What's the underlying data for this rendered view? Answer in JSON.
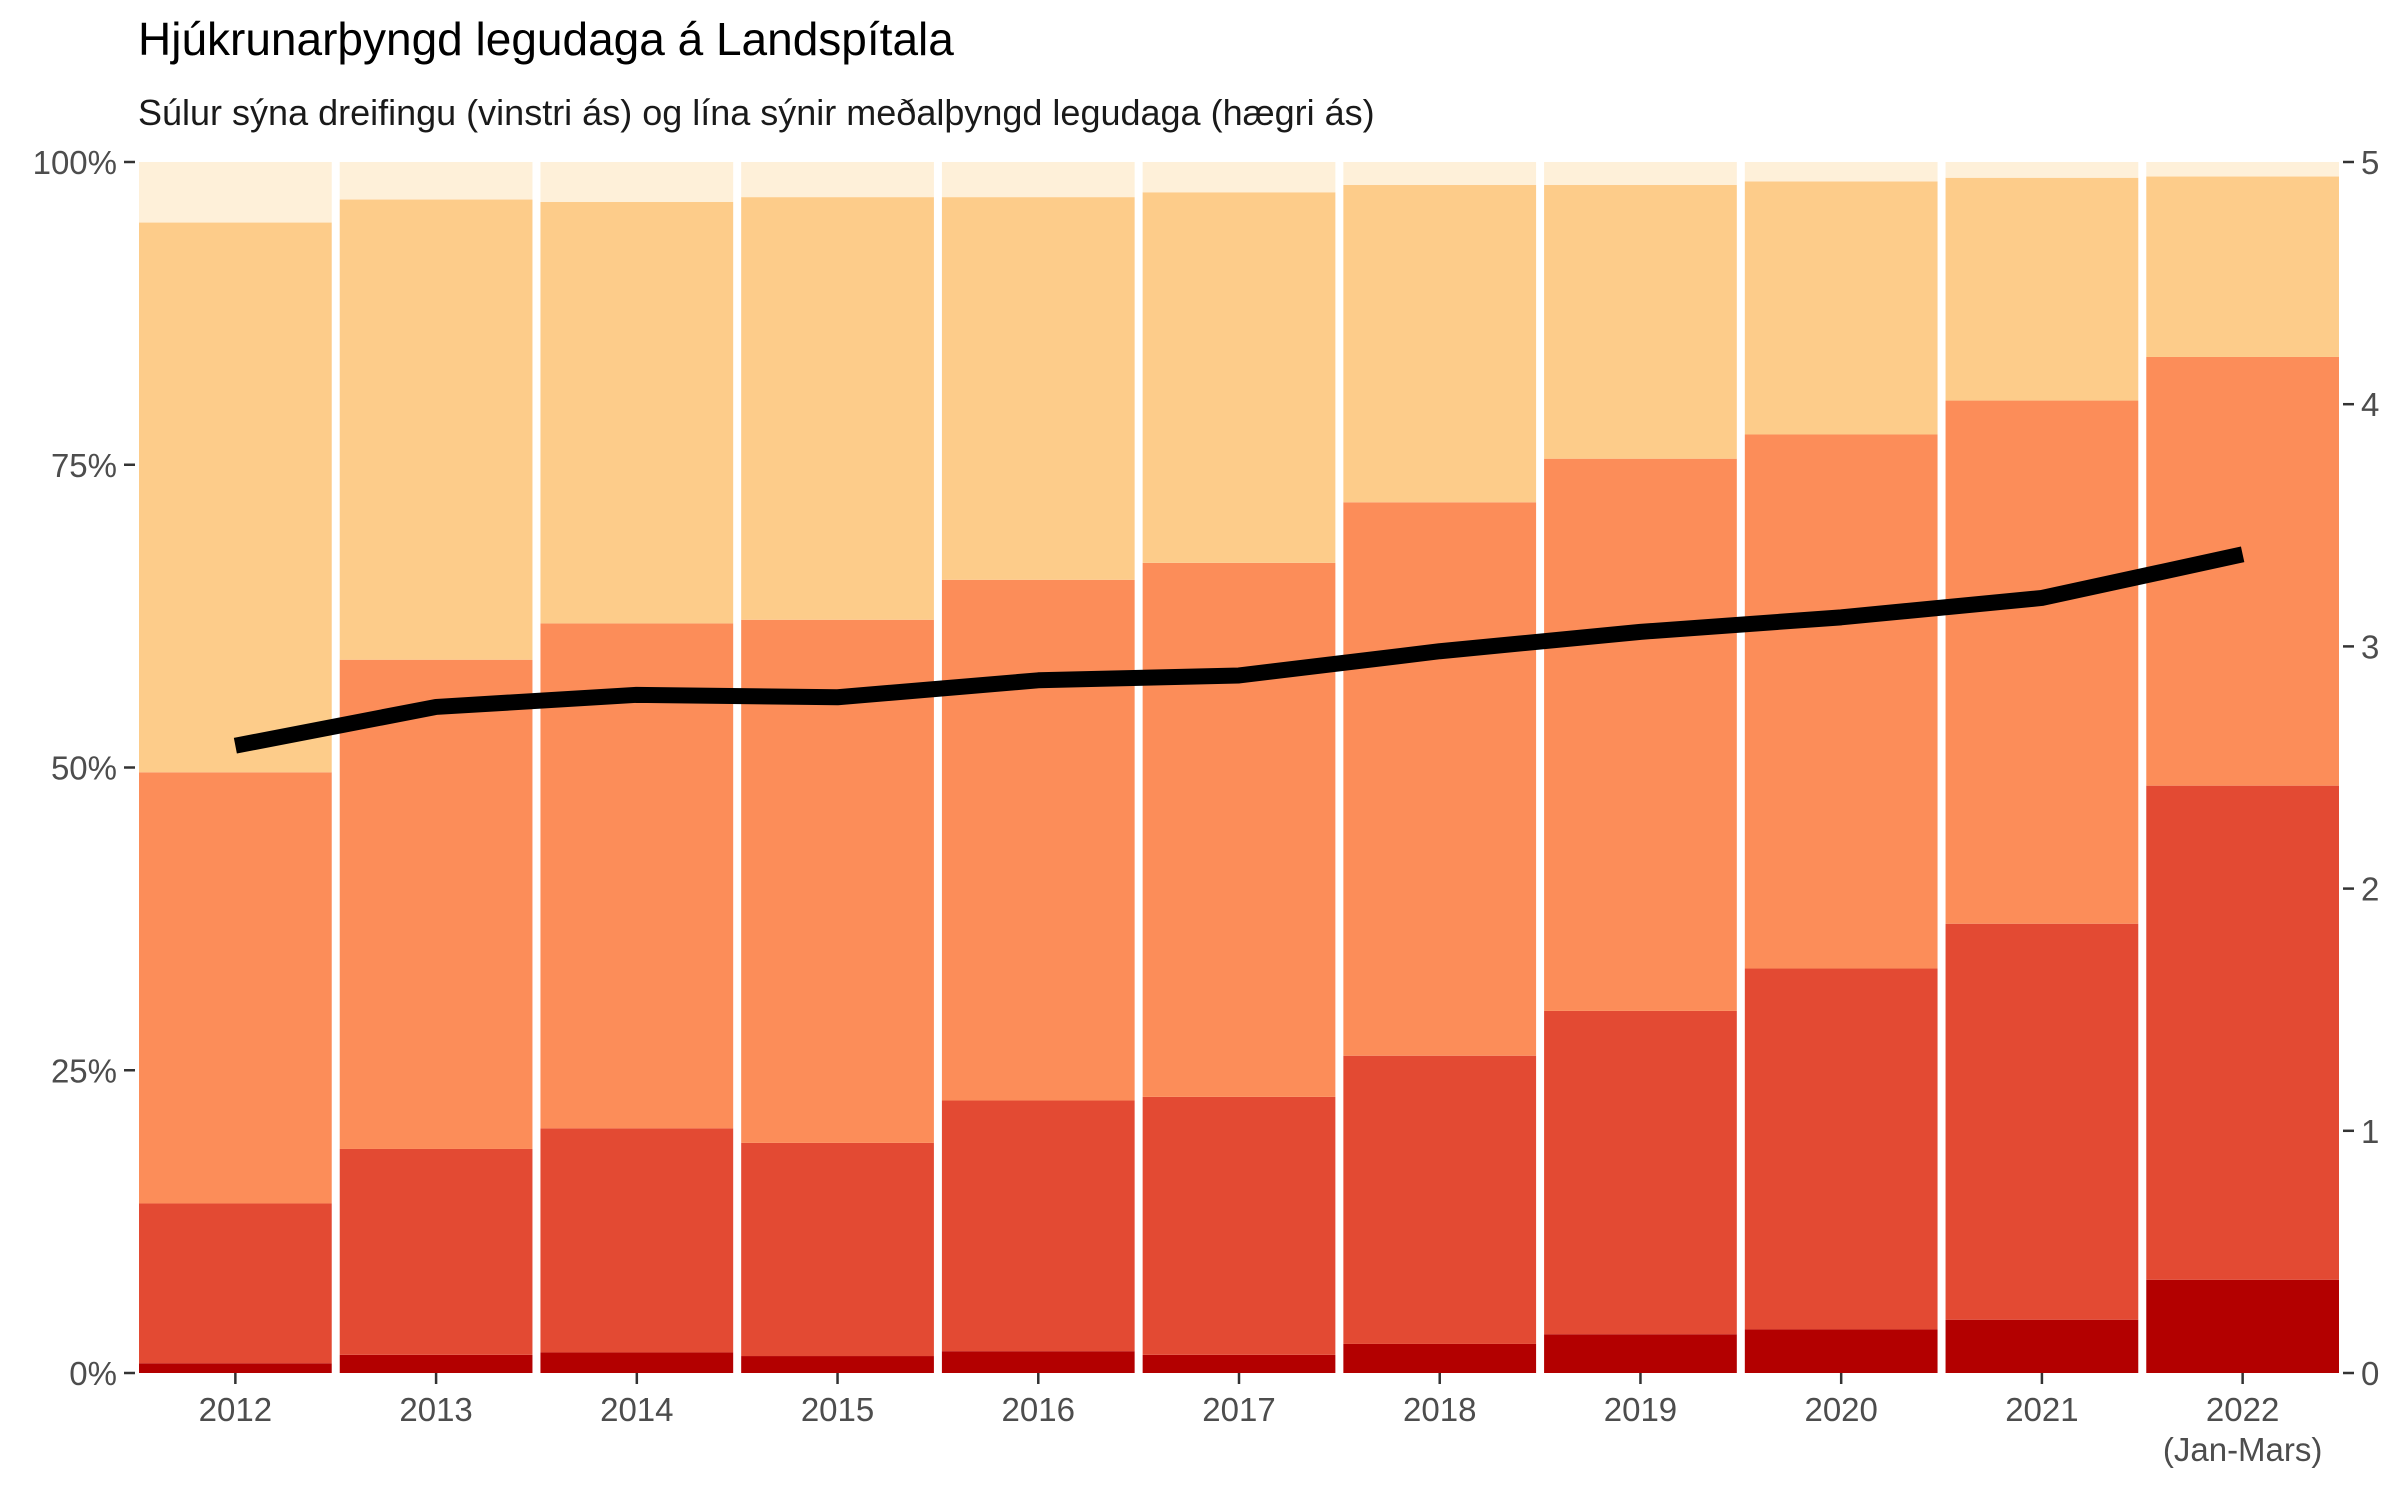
{
  "title": "Hjúkrunarþyngd legudaga á Landspítala",
  "subtitle": "Súlur sýna dreifingu (vinstri ás) og lína sýnir meðalþyngd legudaga (hægri ás)",
  "chart_data": {
    "type": "bar",
    "stacked": true,
    "categories": [
      "2012",
      "2013",
      "2014",
      "2015",
      "2016",
      "2017",
      "2018",
      "2019",
      "2020",
      "2021",
      "2022"
    ],
    "category_sublabels": [
      "",
      "",
      "",
      "",
      "",
      "",
      "",
      "",
      "",
      "",
      "(Jan-Mars)"
    ],
    "series": [
      {
        "color": "#b30000",
        "values": [
          0.8,
          1.5,
          1.7,
          1.4,
          1.8,
          1.5,
          2.4,
          3.2,
          3.6,
          4.4,
          7.7
        ]
      },
      {
        "color": "#e34a33",
        "values": [
          13.2,
          17.0,
          18.5,
          17.6,
          20.7,
          21.3,
          23.8,
          26.7,
          29.8,
          32.7,
          40.8
        ]
      },
      {
        "color": "#fc8d59",
        "values": [
          35.6,
          40.4,
          41.7,
          43.2,
          43.0,
          44.1,
          45.7,
          45.6,
          44.1,
          43.2,
          35.4
        ]
      },
      {
        "color": "#fdcc8a",
        "values": [
          45.4,
          38.0,
          34.8,
          34.9,
          31.6,
          30.6,
          26.2,
          22.6,
          20.9,
          18.4,
          14.9
        ]
      },
      {
        "color": "#fef0d9",
        "values": [
          5.0,
          3.1,
          3.3,
          2.9,
          2.9,
          2.5,
          1.9,
          1.9,
          1.6,
          1.3,
          1.2
        ]
      }
    ],
    "line": {
      "color": "#000000",
      "values": [
        2.59,
        2.75,
        2.8,
        2.79,
        2.86,
        2.88,
        2.98,
        3.06,
        3.12,
        3.2,
        3.38
      ]
    },
    "y_left": {
      "lim": [
        0,
        100
      ],
      "ticks": [
        0,
        25,
        50,
        75,
        100
      ],
      "tick_labels": [
        "0%",
        "25%",
        "50%",
        "75%",
        "100%"
      ]
    },
    "y_right": {
      "lim": [
        0,
        5
      ],
      "ticks": [
        0,
        1,
        2,
        3,
        4,
        5
      ],
      "tick_labels": [
        "0",
        "1",
        "2",
        "3",
        "4",
        "5"
      ]
    },
    "grid": false,
    "legend": "none"
  }
}
